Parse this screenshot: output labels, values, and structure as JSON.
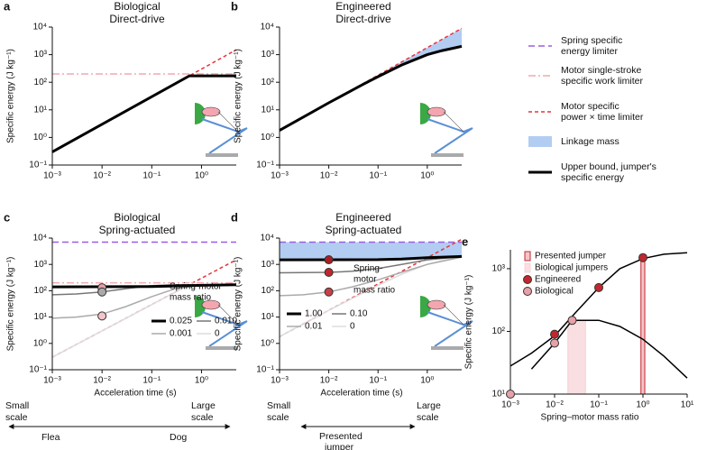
{
  "chart_data": [
    {
      "type": "line",
      "label": "a",
      "title": "Biological",
      "title_color": "#ec8f9c",
      "subtitle": "Direct-drive",
      "ylabel": "Specific energy (J kg⁻¹)",
      "xscale": "log",
      "yscale": "log",
      "xlim": [
        0.001,
        5
      ],
      "ylim": [
        0.1,
        10000
      ],
      "xticks": [
        {
          "value": 0.001,
          "label": "10⁻³"
        },
        {
          "value": 0.01,
          "label": "10⁻²"
        },
        {
          "value": 0.1,
          "label": "10⁻¹"
        },
        {
          "value": 1,
          "label": "10⁰"
        }
      ],
      "yticks": [
        {
          "value": 0.1,
          "label": "10⁻¹"
        },
        {
          "value": 1,
          "label": "10⁰"
        },
        {
          "value": 10,
          "label": "10¹"
        },
        {
          "value": 100,
          "label": "10²"
        },
        {
          "value": 1000,
          "label": "10³"
        },
        {
          "value": 10000,
          "label": "10⁴"
        }
      ],
      "series": [
        {
          "color": "#000000",
          "style": "thick",
          "x": [
            0.001,
            0.57,
            5
          ],
          "values": [
            0.3,
            170,
            170
          ]
        },
        {
          "color": "#e8333a",
          "style": "dashed",
          "x": [
            0.001,
            5
          ],
          "values": [
            0.3,
            1500
          ]
        },
        {
          "color": "#f2a9b0",
          "style": "dashdot",
          "x": [
            0.001,
            5
          ],
          "values": [
            200,
            200
          ]
        }
      ]
    },
    {
      "type": "line",
      "label": "b",
      "title": "Engineered",
      "title_color": "#c0282d",
      "subtitle": "Direct-drive",
      "ylabel": "Specific energy (J kg⁻¹)",
      "xscale": "log",
      "yscale": "log",
      "xlim": [
        0.001,
        5
      ],
      "ylim": [
        0.1,
        10000
      ],
      "xticks": [
        {
          "value": 0.001,
          "label": "10⁻³"
        },
        {
          "value": 0.01,
          "label": "10⁻²"
        },
        {
          "value": 0.1,
          "label": "10⁻¹"
        },
        {
          "value": 1,
          "label": "10⁰"
        }
      ],
      "yticks": [
        {
          "value": 0.1,
          "label": "10⁻¹"
        },
        {
          "value": 1,
          "label": "10⁰"
        },
        {
          "value": 10,
          "label": "10¹"
        },
        {
          "value": 100,
          "label": "10²"
        },
        {
          "value": 1000,
          "label": "10³"
        },
        {
          "value": 10000,
          "label": "10⁴"
        }
      ],
      "fill_between": [
        1,
        0
      ],
      "fill_color": "#b3cdf2",
      "series": [
        {
          "color": "#000000",
          "style": "thick",
          "x": [
            0.001,
            0.01,
            0.05,
            0.1,
            0.3,
            1,
            2,
            5
          ],
          "values": [
            1.8,
            18,
            85,
            160,
            420,
            1000,
            1400,
            2000
          ]
        },
        {
          "color": "#e8333a",
          "style": "dashed",
          "x": [
            0.001,
            5
          ],
          "values": [
            1.8,
            9000
          ]
        }
      ]
    },
    {
      "type": "line",
      "label": "c",
      "title": "Biological",
      "title_color": "#ec8f9c",
      "subtitle": "Spring-actuated",
      "ylabel": "Specific energy (J kg⁻¹)",
      "xlabel": "Acceleration time (s)",
      "xscale": "log",
      "yscale": "log",
      "xlim": [
        0.001,
        5
      ],
      "ylim": [
        0.1,
        10000
      ],
      "xticks": [
        {
          "value": 0.001,
          "label": "10⁻³"
        },
        {
          "value": 0.01,
          "label": "10⁻²"
        },
        {
          "value": 0.1,
          "label": "10⁻¹"
        },
        {
          "value": 1,
          "label": "10⁰"
        }
      ],
      "yticks": [
        {
          "value": 0.1,
          "label": "10⁻¹"
        },
        {
          "value": 1,
          "label": "10⁰"
        },
        {
          "value": 10,
          "label": "10¹"
        },
        {
          "value": 100,
          "label": "10²"
        },
        {
          "value": 1000,
          "label": "10³"
        },
        {
          "value": 10000,
          "label": "10⁴"
        }
      ],
      "legend_title": [
        "Spring-motor",
        "mass ratio"
      ],
      "series": [
        {
          "name": "0.025",
          "color": "#000000",
          "style": "thick",
          "x": [
            0.001,
            0.1,
            1,
            5
          ],
          "values": [
            140,
            145,
            160,
            170
          ]
        },
        {
          "name": "0.010",
          "color": "#777777",
          "style": "solid",
          "x": [
            0.001,
            0.003,
            0.01,
            0.03,
            0.1,
            0.3,
            1,
            5
          ],
          "values": [
            70,
            75,
            90,
            120,
            155,
            168,
            170,
            170
          ]
        },
        {
          "name": "0.001",
          "color": "#aaaaaa",
          "style": "solid",
          "x": [
            0.001,
            0.003,
            0.01,
            0.03,
            0.1,
            0.3,
            1,
            5
          ],
          "values": [
            9,
            10,
            13,
            25,
            60,
            120,
            165,
            170
          ]
        },
        {
          "name": "0",
          "color": "#dddddd",
          "style": "solid",
          "x": [
            0.001,
            0.57,
            5
          ],
          "values": [
            0.3,
            170,
            170
          ]
        },
        {
          "color": "#9b5de5",
          "style": "longdash",
          "x": [
            0.001,
            5
          ],
          "values": [
            7000,
            7000
          ]
        },
        {
          "color": "#f2a9b0",
          "style": "dashdot",
          "x": [
            0.001,
            5
          ],
          "values": [
            200,
            200
          ]
        },
        {
          "color": "#e8333a",
          "style": "dashed",
          "x": [
            0.001,
            5
          ],
          "values": [
            0.3,
            1500
          ]
        }
      ],
      "points": [
        {
          "color": "#e8a0a8",
          "x": [
            0.01
          ],
          "values": [
            130
          ]
        },
        {
          "color": "#aaaaaa",
          "x": [
            0.01
          ],
          "values": [
            90
          ]
        },
        {
          "color": "#f3c4c9",
          "x": [
            0.01
          ],
          "values": [
            11
          ]
        }
      ]
    },
    {
      "type": "line",
      "label": "d",
      "title": "Engineered",
      "title_color": "#c0282d",
      "subtitle": "Spring-actuated",
      "ylabel": "Specific energy (J kg⁻¹)",
      "xlabel": "Acceleration time (s)",
      "xscale": "log",
      "yscale": "log",
      "xlim": [
        0.001,
        5
      ],
      "ylim": [
        0.1,
        10000
      ],
      "xticks": [
        {
          "value": 0.001,
          "label": "10⁻³"
        },
        {
          "value": 0.01,
          "label": "10⁻²"
        },
        {
          "value": 0.1,
          "label": "10⁻¹"
        },
        {
          "value": 1,
          "label": "10⁰"
        }
      ],
      "yticks": [
        {
          "value": 0.1,
          "label": "10⁻¹"
        },
        {
          "value": 1,
          "label": "10⁰"
        },
        {
          "value": 10,
          "label": "10¹"
        },
        {
          "value": 100,
          "label": "10²"
        },
        {
          "value": 1000,
          "label": "10³"
        },
        {
          "value": 10000,
          "label": "10⁴"
        }
      ],
      "legend_title": [
        "Spring-",
        "motor",
        "mass ratio"
      ],
      "fill_between": [
        4,
        0
      ],
      "fill_color": "#b3cdf2",
      "series": [
        {
          "name": "1.00",
          "color": "#000000",
          "style": "thick",
          "x": [
            0.001,
            0.1,
            0.3,
            1,
            5
          ],
          "values": [
            1500,
            1520,
            1600,
            1800,
            2000
          ]
        },
        {
          "name": "0.10",
          "color": "#777777",
          "style": "solid",
          "x": [
            0.001,
            0.01,
            0.03,
            0.1,
            0.3,
            1,
            5
          ],
          "values": [
            480,
            500,
            550,
            700,
            1000,
            1500,
            2000
          ]
        },
        {
          "name": "0.01",
          "color": "#aaaaaa",
          "style": "solid",
          "x": [
            0.001,
            0.003,
            0.01,
            0.03,
            0.1,
            0.3,
            1,
            5
          ],
          "values": [
            65,
            70,
            90,
            140,
            260,
            500,
            1000,
            1900
          ]
        },
        {
          "name": "0",
          "color": "#dddddd",
          "style": "solid",
          "x": [
            0.001,
            0.01,
            0.1,
            0.3,
            1,
            2,
            5
          ],
          "values": [
            1.8,
            18,
            160,
            420,
            1000,
            1400,
            2000
          ]
        },
        {
          "color": "#9b5de5",
          "style": "longdash",
          "x": [
            0.001,
            5
          ],
          "values": [
            7000,
            7000
          ]
        },
        {
          "color": "#e8333a",
          "style": "dashed",
          "x": [
            0.001,
            5
          ],
          "values": [
            1.8,
            9000
          ]
        }
      ],
      "points": [
        {
          "color": "#a81e24",
          "x": [
            0.01
          ],
          "values": [
            1500
          ]
        },
        {
          "color": "#c0282d",
          "x": [
            0.01
          ],
          "values": [
            500
          ]
        },
        {
          "color": "#c84048",
          "x": [
            0.01
          ],
          "values": [
            90
          ]
        }
      ]
    },
    {
      "type": "line",
      "label": "e",
      "ylabel": "Specific energy (J kg⁻¹)",
      "xlabel": "Spring–motor mass ratio",
      "xscale": "log",
      "yscale": "log",
      "xlim": [
        0.001,
        10
      ],
      "ylim": [
        10,
        2000
      ],
      "xticks": [
        {
          "value": 0.001,
          "label": "10⁻³"
        },
        {
          "value": 0.01,
          "label": "10⁻²"
        },
        {
          "value": 0.1,
          "label": "10⁻¹"
        },
        {
          "value": 1,
          "label": "10⁰"
        },
        {
          "value": 10,
          "label": "10¹"
        }
      ],
      "yticks": [
        {
          "value": 10,
          "label": "10¹"
        },
        {
          "value": 100,
          "label": "10²"
        },
        {
          "value": 1000,
          "label": "10³"
        }
      ],
      "bands": [
        {
          "name": "Presented jumper",
          "color": "#c0282d",
          "fill": "#f3c4c9",
          "x": [
            0.9,
            1.1
          ],
          "values": [
            1500
          ]
        },
        {
          "name": "Biological jumpers",
          "color": "#f6d0d5",
          "fill": "#f9dfe2",
          "x": [
            0.02,
            0.05
          ],
          "values": [
            150
          ]
        }
      ],
      "series": [
        {
          "color": "#000000",
          "style": "solid",
          "x": [
            0.001,
            0.003,
            0.01,
            0.03,
            0.1,
            0.3,
            1,
            3,
            10
          ],
          "values": [
            28,
            45,
            85,
            200,
            500,
            1000,
            1450,
            1700,
            1800
          ]
        },
        {
          "color": "#000000",
          "style": "solid",
          "x": [
            0.003,
            0.01,
            0.025,
            0.1,
            0.3,
            1,
            3,
            10
          ],
          "values": [
            25,
            65,
            150,
            150,
            120,
            75,
            40,
            18
          ]
        }
      ],
      "points": [
        {
          "name": "Engineered",
          "color": "#c0282d",
          "x": [
            0.01,
            0.1,
            1
          ],
          "values": [
            90,
            500,
            1500
          ]
        },
        {
          "name": "Biological",
          "color": "#e8a0a8",
          "x": [
            0.001,
            0.01,
            0.025
          ],
          "values": [
            10,
            65,
            150
          ]
        }
      ]
    }
  ],
  "legend": [
    {
      "lines": [
        "Spring specific",
        "energy limiter"
      ],
      "color": "#9b5de5",
      "style": "longdash"
    },
    {
      "lines": [
        "Motor single-stroke",
        "specific work limiter"
      ],
      "color": "#f2a9b0",
      "style": "dashdot"
    },
    {
      "lines": [
        "Motor specific",
        "power × time limiter"
      ],
      "color": "#e8333a",
      "style": "dashed"
    },
    {
      "lines": [
        "Linkage mass"
      ],
      "color": "#b3cdf2",
      "style": "fill"
    },
    {
      "lines": [
        "Upper bound, jumper's",
        "specific energy"
      ],
      "color": "#000000",
      "style": "thick"
    }
  ],
  "annotations": {
    "c": {
      "small": [
        "Small",
        "scale"
      ],
      "large": [
        "Large",
        "scale"
      ],
      "flea": "Flea",
      "dog": "Dog"
    },
    "d": {
      "small": [
        "Small",
        "scale"
      ],
      "large": [
        "Large",
        "scale"
      ],
      "presented": [
        "Presented",
        "jumper"
      ]
    }
  }
}
